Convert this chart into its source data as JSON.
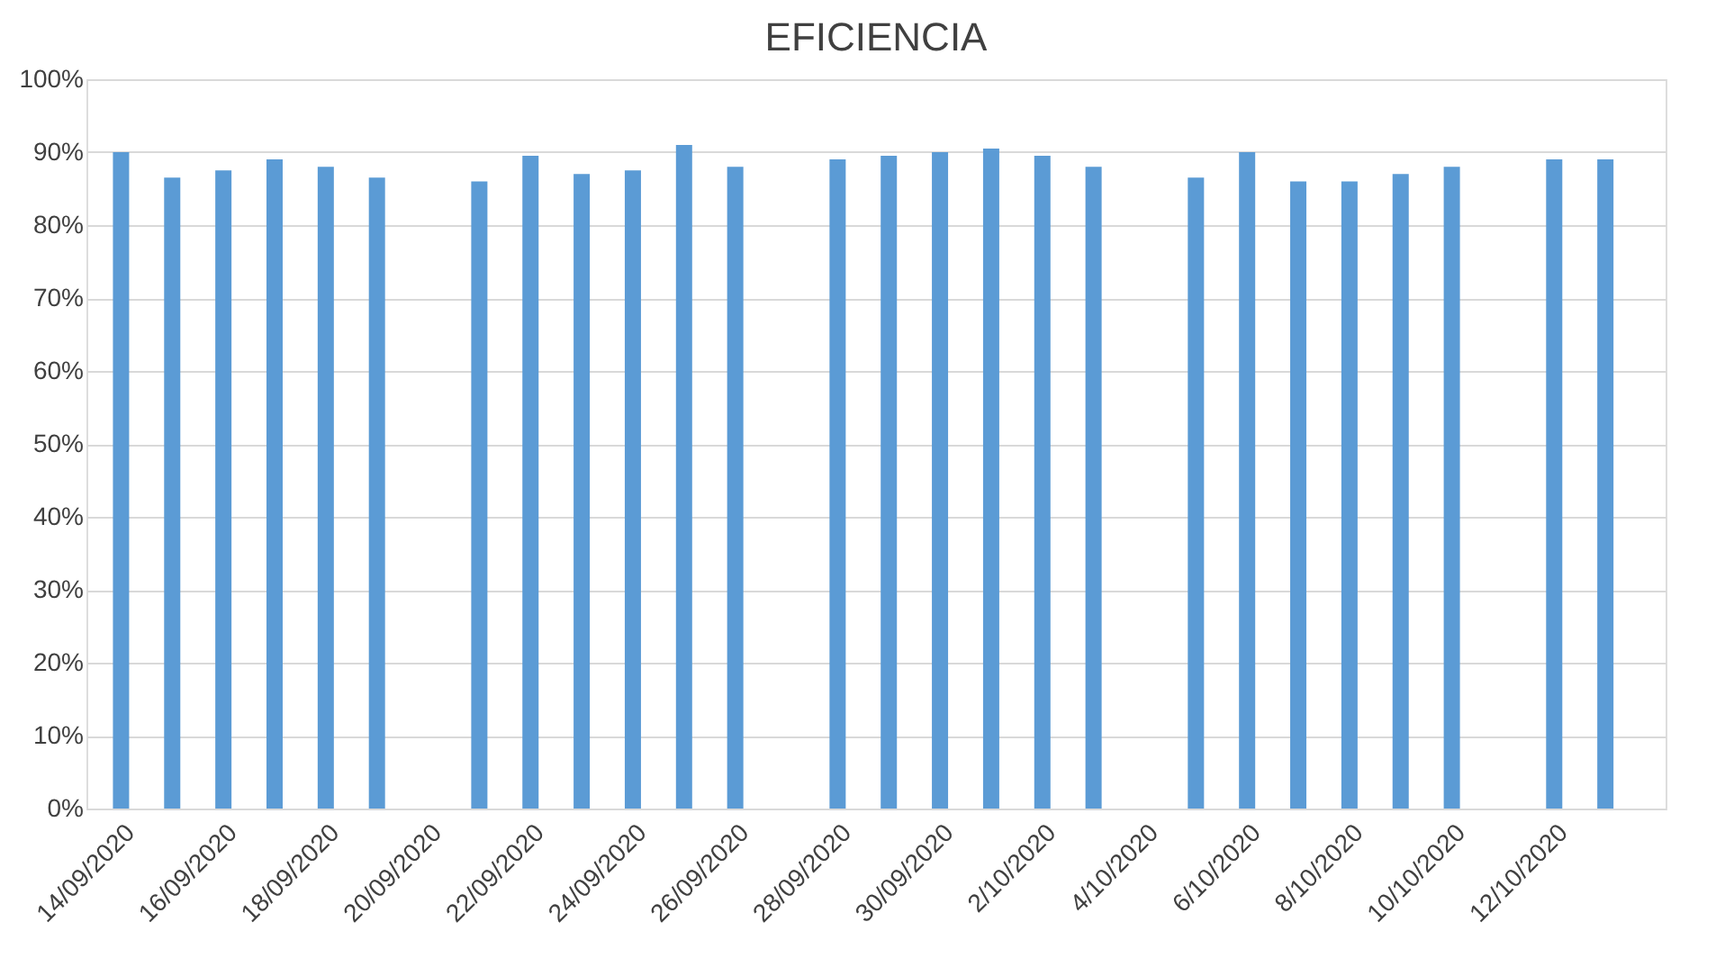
{
  "chart_data": {
    "type": "bar",
    "title": "EFICIENCIA",
    "x": [
      "2020-09-14",
      "2020-09-15",
      "2020-09-16",
      "2020-09-17",
      "2020-09-18",
      "2020-09-19",
      "2020-09-21",
      "2020-09-22",
      "2020-09-23",
      "2020-09-24",
      "2020-09-25",
      "2020-09-26",
      "2020-09-28",
      "2020-09-29",
      "2020-09-30",
      "2020-10-01",
      "2020-10-02",
      "2020-10-03",
      "2020-10-05",
      "2020-10-06",
      "2020-10-07",
      "2020-10-08",
      "2020-10-09",
      "2020-10-10",
      "2020-10-12",
      "2020-10-13"
    ],
    "series": [
      {
        "color": "#5b9bd5",
        "values": [
          90,
          86.5,
          87.5,
          89,
          88,
          86.5,
          86,
          89.5,
          87,
          87.5,
          91,
          88,
          89,
          89.5,
          90,
          90.5,
          89.5,
          88,
          86.5,
          90,
          86,
          86,
          87,
          88,
          89,
          89
        ]
      }
    ],
    "xlim": [
      "2020-09-13T12:00",
      "2020-10-14T00:00"
    ],
    "xticks": [
      {
        "value": "2020-09-14",
        "label": "14/09/2020"
      },
      {
        "value": "2020-09-16",
        "label": "16/09/2020"
      },
      {
        "value": "2020-09-18",
        "label": "18/09/2020"
      },
      {
        "value": "2020-09-20",
        "label": "20/09/2020"
      },
      {
        "value": "2020-09-22",
        "label": "22/09/2020"
      },
      {
        "value": "2020-09-24",
        "label": "24/09/2020"
      },
      {
        "value": "2020-09-26",
        "label": "26/09/2020"
      },
      {
        "value": "2020-09-28",
        "label": "28/09/2020"
      },
      {
        "value": "2020-09-30",
        "label": "30/09/2020"
      },
      {
        "value": "2020-10-02",
        "label": "2/10/2020"
      },
      {
        "value": "2020-10-04",
        "label": "4/10/2020"
      },
      {
        "value": "2020-10-06",
        "label": "6/10/2020"
      },
      {
        "value": "2020-10-08",
        "label": "8/10/2020"
      },
      {
        "value": "2020-10-10",
        "label": "10/10/2020"
      },
      {
        "value": "2020-10-12",
        "label": "12/10/2020"
      }
    ],
    "ylim": [
      0,
      100
    ],
    "yticks": [
      {
        "value": 0,
        "label": "0%"
      },
      {
        "value": 10,
        "label": "10%"
      },
      {
        "value": 20,
        "label": "20%"
      },
      {
        "value": 30,
        "label": "30%"
      },
      {
        "value": 40,
        "label": "40%"
      },
      {
        "value": 50,
        "label": "50%"
      },
      {
        "value": 60,
        "label": "60%"
      },
      {
        "value": 70,
        "label": "70%"
      },
      {
        "value": 80,
        "label": "80%"
      },
      {
        "value": 90,
        "label": "90%"
      },
      {
        "value": 100,
        "label": "100%"
      }
    ],
    "grid": "y",
    "legend": false
  }
}
